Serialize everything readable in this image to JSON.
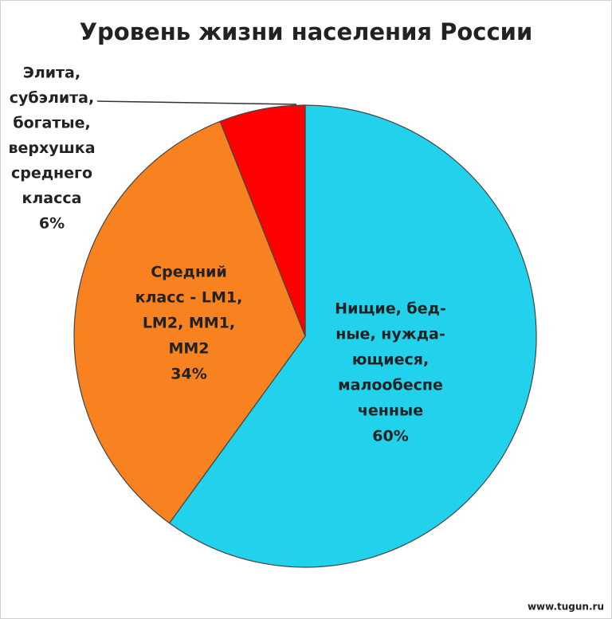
{
  "chart_data": {
    "type": "pie",
    "title": "Уровень жизни населения России",
    "categories": [
      [
        "Нищие, бед-",
        "ные, нужда-",
        "ющиеся,",
        "малообеспе",
        "ченные"
      ],
      [
        "Средний",
        "класс - LM1,",
        "LM2, MM1,",
        "MM2"
      ],
      [
        "Элита,",
        "субэлита,",
        "богатые,",
        "верхушка",
        "среднего",
        "класса"
      ]
    ],
    "values": [
      60,
      34,
      6
    ],
    "value_labels": [
      "60%",
      "34%",
      "6%"
    ],
    "colors": [
      "#22d2ec",
      "#f7821f",
      "#ff0000"
    ],
    "watermark": "www.tugun.ru"
  }
}
